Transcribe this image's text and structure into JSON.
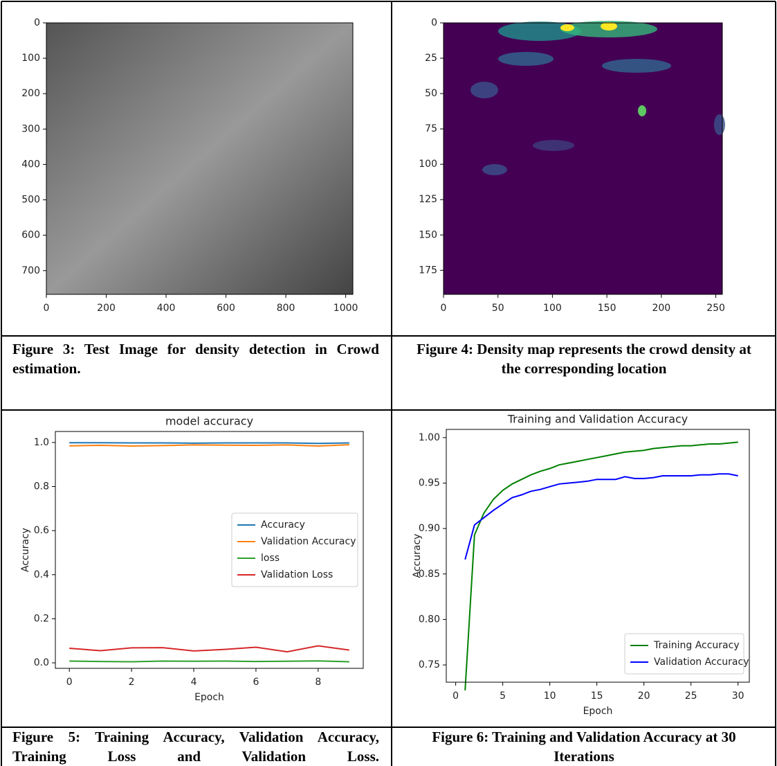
{
  "chart_data": [
    {
      "type": "image",
      "xlim": [
        0,
        1024
      ],
      "ylim": [
        767,
        0
      ],
      "xticks": [
        0,
        200,
        400,
        600,
        800,
        1000
      ],
      "yticks": [
        0,
        100,
        200,
        300,
        400,
        500,
        600,
        700
      ]
    },
    {
      "type": "heatmap",
      "xlim": [
        0,
        256
      ],
      "ylim": [
        192,
        0
      ],
      "xticks": [
        0,
        50,
        100,
        150,
        200,
        250
      ],
      "yticks": [
        0,
        25,
        50,
        75,
        100,
        125,
        150,
        175
      ]
    },
    {
      "type": "line",
      "title": "model accuracy",
      "x_label": "Epoch",
      "y_label": "Accuracy",
      "x": [
        0,
        1,
        2,
        3,
        4,
        5,
        6,
        7,
        8,
        9
      ],
      "series": [
        {
          "name": "Accuracy",
          "color": "#1f77b4",
          "values": [
            0.999,
            0.999,
            0.998,
            0.998,
            0.997,
            0.998,
            0.998,
            0.998,
            0.996,
            0.998
          ]
        },
        {
          "name": "Validation Accuracy",
          "color": "#ff7f0e",
          "values": [
            0.985,
            0.987,
            0.984,
            0.986,
            0.989,
            0.988,
            0.987,
            0.989,
            0.984,
            0.99
          ]
        },
        {
          "name": "loss",
          "color": "#2ca02c",
          "values": [
            0.008,
            0.006,
            0.005,
            0.008,
            0.007,
            0.008,
            0.006,
            0.007,
            0.009,
            0.005
          ]
        },
        {
          "name": "Validation Loss",
          "color": "#d62728",
          "values": [
            0.066,
            0.055,
            0.068,
            0.069,
            0.054,
            0.061,
            0.071,
            0.05,
            0.077,
            0.058
          ]
        }
      ],
      "xlim": [
        -0.45,
        9.45
      ],
      "ylim": [
        -0.025,
        1.05
      ],
      "xticks": [
        0,
        2,
        4,
        6,
        8
      ],
      "yticks": [
        {
          "value": 0,
          "label": "0.0"
        },
        0.2,
        0.4,
        0.6,
        0.8,
        {
          "value": 1,
          "label": "1.0"
        }
      ],
      "legend": "center right"
    },
    {
      "type": "line",
      "title": "Training and Validation Accuracy",
      "x_label": "Epoch",
      "y_label": "Accuracy",
      "x": [
        1,
        2,
        3,
        4,
        5,
        6,
        7,
        8,
        9,
        10,
        11,
        12,
        13,
        14,
        15,
        16,
        17,
        18,
        19,
        20,
        21,
        22,
        23,
        24,
        25,
        26,
        27,
        28,
        29,
        30
      ],
      "series": [
        {
          "name": "Training Accuracy",
          "color": "green",
          "values": [
            0.722,
            0.893,
            0.917,
            0.932,
            0.942,
            0.949,
            0.954,
            0.959,
            0.963,
            0.966,
            0.97,
            0.972,
            0.974,
            0.976,
            0.978,
            0.98,
            0.982,
            0.984,
            0.985,
            0.986,
            0.988,
            0.989,
            0.99,
            0.991,
            0.991,
            0.992,
            0.993,
            0.993,
            0.994,
            0.995
          ]
        },
        {
          "name": "Validation Accuracy",
          "color": "blue",
          "values": [
            0.866,
            0.904,
            0.912,
            0.92,
            0.927,
            0.934,
            0.937,
            0.941,
            0.943,
            0.946,
            0.949,
            0.95,
            0.951,
            0.952,
            0.954,
            0.954,
            0.954,
            0.957,
            0.955,
            0.955,
            0.956,
            0.958,
            0.958,
            0.958,
            0.958,
            0.959,
            0.959,
            0.96,
            0.96,
            0.958
          ]
        }
      ],
      "xlim": [
        -1,
        31.2
      ],
      "ylim": [
        0.731,
        1.009
      ],
      "xticks": [
        0,
        5,
        10,
        15,
        20,
        25,
        30
      ],
      "yticks": [
        0.75,
        {
          "value": 0.8,
          "label": "0.80"
        },
        0.85,
        {
          "value": 0.9,
          "label": "0.90"
        },
        0.95,
        {
          "value": 1,
          "label": "1.00"
        }
      ],
      "legend": "lower right"
    }
  ],
  "captions": [
    "Figure 3: Test Image for density detection in Crowd estimation.",
    "Figure 4: Density map represents the crowd density at the corresponding location",
    "Figure 5: Training Accuracy, Validation Accuracy, Training Loss and Validation Loss.",
    "Figure 6: Training and Validation Accuracy at 30 Iterations"
  ]
}
